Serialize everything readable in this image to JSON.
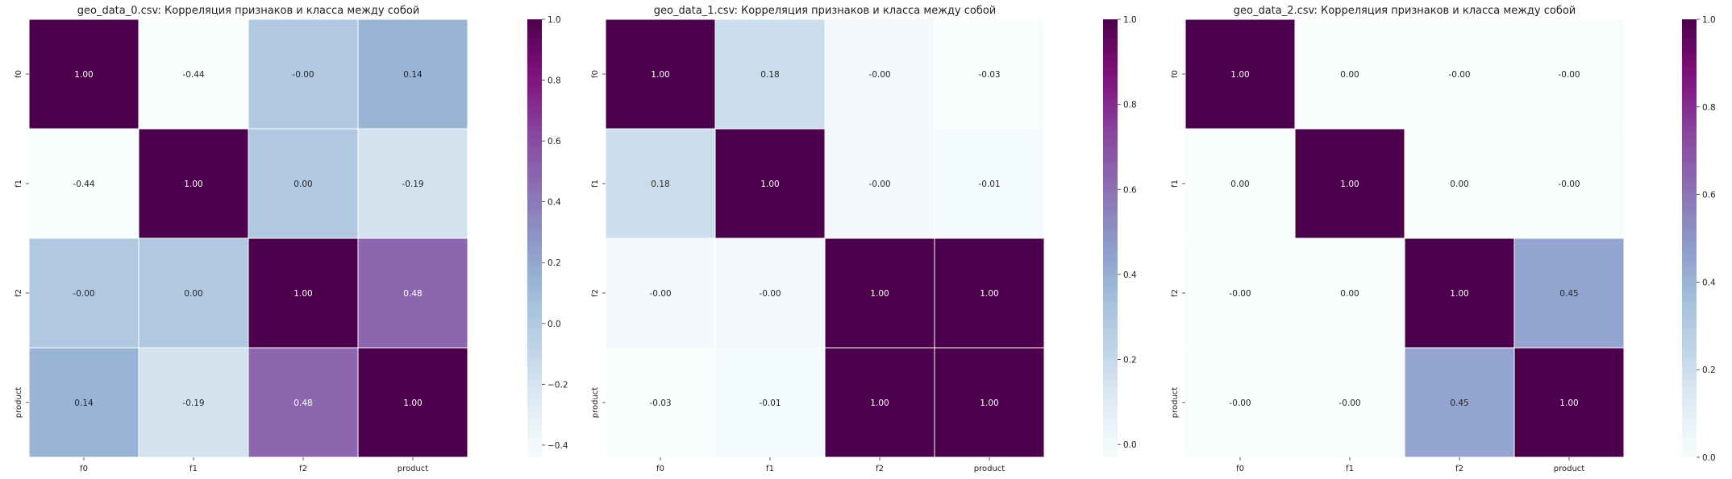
{
  "chart_data": [
    {
      "type": "heatmap",
      "title": "geo_data_0.csv: Корреляция признаков и класса между собой",
      "categories": [
        "f0",
        "f1",
        "f2",
        "product"
      ],
      "values": [
        [
          1.0,
          -0.44,
          -0.0,
          0.14
        ],
        [
          -0.44,
          1.0,
          0.0,
          -0.19
        ],
        [
          -0.0,
          0.0,
          1.0,
          0.48
        ],
        [
          0.14,
          -0.19,
          0.48,
          1.0
        ]
      ],
      "labels": [
        [
          "1.00",
          "-0.44",
          "-0.00",
          "0.14"
        ],
        [
          "-0.44",
          "1.00",
          "0.00",
          "-0.19"
        ],
        [
          "-0.00",
          "0.00",
          "1.00",
          "0.48"
        ],
        [
          "0.14",
          "-0.19",
          "0.48",
          "1.00"
        ]
      ],
      "colorbar_range": [
        -0.44,
        1.0
      ],
      "colorbar_ticks": [
        "1.0",
        "0.8",
        "0.6",
        "0.4",
        "0.2",
        "0.0",
        "−0.2",
        "−0.4"
      ],
      "colorbar_tick_values": [
        1.0,
        0.8,
        0.6,
        0.4,
        0.2,
        0.0,
        -0.2,
        -0.4
      ],
      "colormap": "BuPu"
    },
    {
      "type": "heatmap",
      "title": "geo_data_1.csv: Корреляция признаков и класса между собой",
      "categories": [
        "f0",
        "f1",
        "f2",
        "product"
      ],
      "values": [
        [
          1.0,
          0.18,
          -0.0,
          -0.03
        ],
        [
          0.18,
          1.0,
          -0.0,
          -0.01
        ],
        [
          -0.0,
          -0.0,
          1.0,
          1.0
        ],
        [
          -0.03,
          -0.01,
          1.0,
          1.0
        ]
      ],
      "labels": [
        [
          "1.00",
          "0.18",
          "-0.00",
          "-0.03"
        ],
        [
          "0.18",
          "1.00",
          "-0.00",
          "-0.01"
        ],
        [
          "-0.00",
          "-0.00",
          "1.00",
          "1.00"
        ],
        [
          "-0.03",
          "-0.01",
          "1.00",
          "1.00"
        ]
      ],
      "colorbar_range": [
        -0.03,
        1.0
      ],
      "colorbar_ticks": [
        "1.0",
        "0.8",
        "0.6",
        "0.4",
        "0.2",
        "0.0"
      ],
      "colorbar_tick_values": [
        1.0,
        0.8,
        0.6,
        0.4,
        0.2,
        0.0
      ],
      "colormap": "BuPu"
    },
    {
      "type": "heatmap",
      "title": "geo_data_2.csv: Корреляция признаков и класса между собой",
      "categories": [
        "f0",
        "f1",
        "f2",
        "product"
      ],
      "values": [
        [
          1.0,
          0.0,
          -0.0,
          -0.0
        ],
        [
          0.0,
          1.0,
          0.0,
          -0.0
        ],
        [
          -0.0,
          0.0,
          1.0,
          0.45
        ],
        [
          -0.0,
          -0.0,
          0.45,
          1.0
        ]
      ],
      "labels": [
        [
          "1.00",
          "0.00",
          "-0.00",
          "-0.00"
        ],
        [
          "0.00",
          "1.00",
          "0.00",
          "-0.00"
        ],
        [
          "-0.00",
          "0.00",
          "1.00",
          "0.45"
        ],
        [
          "-0.00",
          "-0.00",
          "0.45",
          "1.00"
        ]
      ],
      "colorbar_range": [
        0.0,
        1.0
      ],
      "colorbar_ticks": [
        "1.0",
        "0.8",
        "0.6",
        "0.4",
        "0.2",
        "0.0"
      ],
      "colorbar_tick_values": [
        1.0,
        0.8,
        0.6,
        0.4,
        0.2,
        0.0
      ],
      "colormap": "BuPu"
    }
  ]
}
